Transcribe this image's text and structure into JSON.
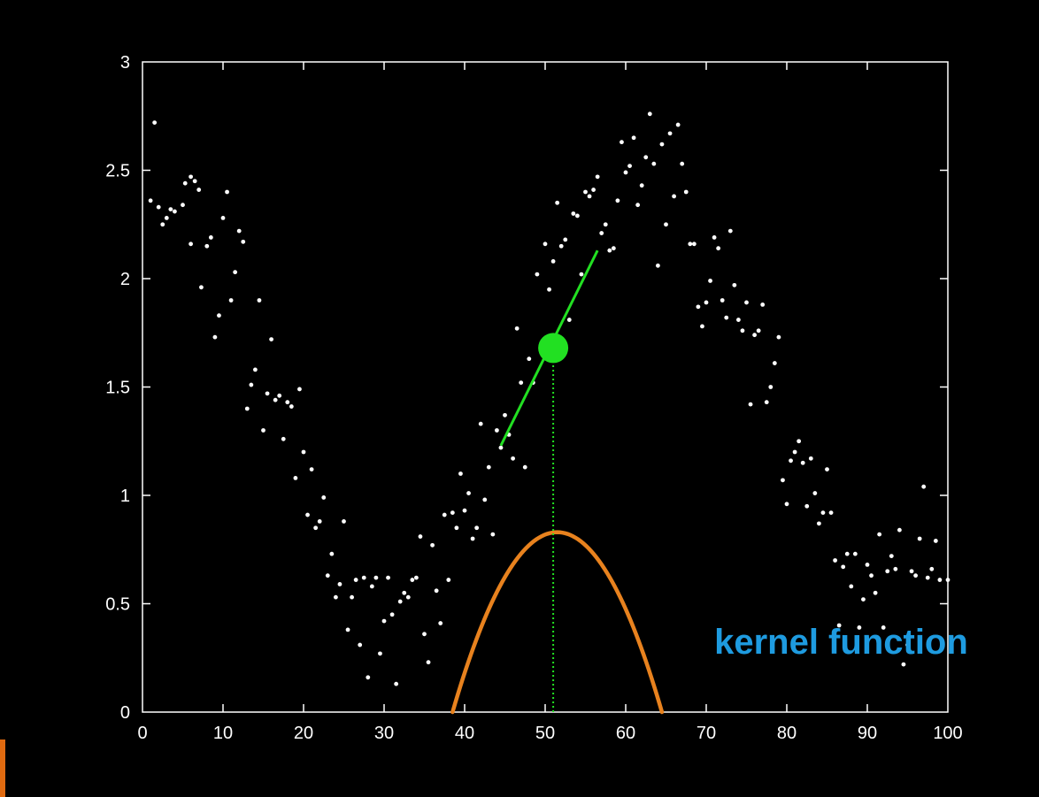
{
  "chart_data": {
    "type": "scatter",
    "title": "",
    "xlabel": "",
    "ylabel": "",
    "xlim": [
      0,
      100
    ],
    "ylim": [
      0,
      3
    ],
    "x_ticks": [
      0,
      10,
      20,
      30,
      40,
      50,
      60,
      70,
      80,
      90,
      100
    ],
    "x_tick_labels": [
      "0",
      "10",
      "20",
      "30",
      "40",
      "50",
      "60",
      "70",
      "80",
      "90",
      "100"
    ],
    "y_ticks": [
      0,
      0.5,
      1,
      1.5,
      2,
      2.5,
      3
    ],
    "y_tick_labels": [
      "0",
      "0.5",
      "1",
      "1.5",
      "2",
      "2.5",
      "3"
    ],
    "grid": false,
    "colors": {
      "background": "#000000",
      "axes": "#ffffff",
      "points": "#ffffff",
      "local_fit": "#22e022",
      "query_point": "#22e022",
      "kernel": "#e8821e",
      "annotation": "#1e9be0"
    },
    "series": [
      {
        "type": "scatter",
        "points": [
          [
            1.5,
            2.72
          ],
          [
            1,
            2.36
          ],
          [
            2,
            2.33
          ],
          [
            2.5,
            2.25
          ],
          [
            3,
            2.28
          ],
          [
            3.5,
            2.32
          ],
          [
            4,
            2.31
          ],
          [
            5,
            2.34
          ],
          [
            5.3,
            2.44
          ],
          [
            6,
            2.47
          ],
          [
            6.5,
            2.45
          ],
          [
            7,
            2.41
          ],
          [
            7.3,
            1.96
          ],
          [
            6,
            2.16
          ],
          [
            8,
            2.15
          ],
          [
            8.5,
            2.19
          ],
          [
            9,
            1.73
          ],
          [
            9.5,
            1.83
          ],
          [
            10,
            2.28
          ],
          [
            10.5,
            2.4
          ],
          [
            11,
            1.9
          ],
          [
            11.5,
            2.03
          ],
          [
            12,
            2.22
          ],
          [
            12.5,
            2.17
          ],
          [
            13,
            1.4
          ],
          [
            13.5,
            1.51
          ],
          [
            14,
            1.58
          ],
          [
            14.5,
            1.9
          ],
          [
            15,
            1.3
          ],
          [
            15.5,
            1.47
          ],
          [
            16,
            1.72
          ],
          [
            16.5,
            1.44
          ],
          [
            17,
            1.46
          ],
          [
            17.5,
            1.26
          ],
          [
            18,
            1.43
          ],
          [
            18.5,
            1.41
          ],
          [
            19,
            1.08
          ],
          [
            19.5,
            1.49
          ],
          [
            20,
            1.2
          ],
          [
            20.5,
            0.91
          ],
          [
            21,
            1.12
          ],
          [
            21.5,
            0.85
          ],
          [
            22,
            0.88
          ],
          [
            22.5,
            0.99
          ],
          [
            23,
            0.63
          ],
          [
            23.5,
            0.73
          ],
          [
            24,
            0.53
          ],
          [
            24.5,
            0.59
          ],
          [
            25,
            0.88
          ],
          [
            25.5,
            0.38
          ],
          [
            26,
            0.53
          ],
          [
            26.5,
            0.61
          ],
          [
            27,
            0.31
          ],
          [
            27.5,
            0.62
          ],
          [
            28,
            0.16
          ],
          [
            28.5,
            0.58
          ],
          [
            29,
            0.62
          ],
          [
            29.5,
            0.27
          ],
          [
            30,
            0.42
          ],
          [
            30.5,
            0.62
          ],
          [
            31,
            0.45
          ],
          [
            31.5,
            0.13
          ],
          [
            32,
            0.51
          ],
          [
            32.5,
            0.55
          ],
          [
            33,
            0.53
          ],
          [
            33.5,
            0.61
          ],
          [
            34,
            0.62
          ],
          [
            34.5,
            0.81
          ],
          [
            35,
            0.36
          ],
          [
            35.5,
            0.23
          ],
          [
            36,
            0.77
          ],
          [
            36.5,
            0.56
          ],
          [
            37,
            0.41
          ],
          [
            37.5,
            0.91
          ],
          [
            38,
            0.61
          ],
          [
            38.5,
            0.92
          ],
          [
            39,
            0.85
          ],
          [
            39.5,
            1.1
          ],
          [
            40,
            0.93
          ],
          [
            40.5,
            1.01
          ],
          [
            41,
            0.8
          ],
          [
            41.5,
            0.85
          ],
          [
            42,
            1.33
          ],
          [
            42.5,
            0.98
          ],
          [
            43,
            1.13
          ],
          [
            43.5,
            0.82
          ],
          [
            44,
            1.3
          ],
          [
            44.5,
            1.22
          ],
          [
            45,
            1.37
          ],
          [
            45.5,
            1.28
          ],
          [
            46,
            1.17
          ],
          [
            46.5,
            1.77
          ],
          [
            47,
            1.52
          ],
          [
            47.5,
            1.13
          ],
          [
            48,
            1.63
          ],
          [
            48.5,
            1.52
          ],
          [
            49,
            2.02
          ],
          [
            50,
            2.16
          ],
          [
            50.5,
            1.95
          ],
          [
            51,
            2.08
          ],
          [
            51.5,
            2.35
          ],
          [
            52,
            2.15
          ],
          [
            52.5,
            2.18
          ],
          [
            53,
            1.81
          ],
          [
            53.5,
            2.3
          ],
          [
            54,
            2.29
          ],
          [
            54.5,
            2.02
          ],
          [
            55,
            2.4
          ],
          [
            55.5,
            2.38
          ],
          [
            56,
            2.41
          ],
          [
            56.5,
            2.47
          ],
          [
            57,
            2.21
          ],
          [
            57.5,
            2.25
          ],
          [
            58,
            2.13
          ],
          [
            58.5,
            2.14
          ],
          [
            59,
            2.36
          ],
          [
            59.5,
            2.63
          ],
          [
            60,
            2.49
          ],
          [
            60.5,
            2.52
          ],
          [
            61,
            2.65
          ],
          [
            61.5,
            2.34
          ],
          [
            62,
            2.43
          ],
          [
            62.5,
            2.56
          ],
          [
            63,
            2.76
          ],
          [
            63.5,
            2.53
          ],
          [
            64,
            2.06
          ],
          [
            64.5,
            2.62
          ],
          [
            65,
            2.25
          ],
          [
            65.5,
            2.67
          ],
          [
            66,
            2.38
          ],
          [
            66.5,
            2.71
          ],
          [
            67,
            2.53
          ],
          [
            67.5,
            2.4
          ],
          [
            68,
            2.16
          ],
          [
            68.5,
            2.16
          ],
          [
            69,
            1.87
          ],
          [
            69.5,
            1.78
          ],
          [
            70,
            1.89
          ],
          [
            70.5,
            1.99
          ],
          [
            71,
            2.19
          ],
          [
            71.5,
            2.14
          ],
          [
            72,
            1.9
          ],
          [
            72.5,
            1.82
          ],
          [
            73,
            2.22
          ],
          [
            73.5,
            1.97
          ],
          [
            74,
            1.81
          ],
          [
            74.5,
            1.76
          ],
          [
            75,
            1.89
          ],
          [
            75.5,
            1.42
          ],
          [
            76,
            1.74
          ],
          [
            76.5,
            1.76
          ],
          [
            77,
            1.88
          ],
          [
            77.5,
            1.43
          ],
          [
            78,
            1.5
          ],
          [
            78.5,
            1.61
          ],
          [
            79,
            1.73
          ],
          [
            79.5,
            1.07
          ],
          [
            80,
            0.96
          ],
          [
            80.5,
            1.16
          ],
          [
            81,
            1.2
          ],
          [
            81.5,
            1.25
          ],
          [
            82,
            1.15
          ],
          [
            82.5,
            0.95
          ],
          [
            83,
            1.17
          ],
          [
            83.5,
            1.01
          ],
          [
            84,
            0.87
          ],
          [
            84.5,
            0.92
          ],
          [
            85,
            1.12
          ],
          [
            85.5,
            0.92
          ],
          [
            86,
            0.7
          ],
          [
            86.5,
            0.4
          ],
          [
            87,
            0.67
          ],
          [
            87.5,
            0.73
          ],
          [
            88,
            0.58
          ],
          [
            88.5,
            0.73
          ],
          [
            89,
            0.39
          ],
          [
            89.5,
            0.52
          ],
          [
            90,
            0.68
          ],
          [
            90.5,
            0.63
          ],
          [
            91,
            0.55
          ],
          [
            91.5,
            0.82
          ],
          [
            92,
            0.39
          ],
          [
            92.5,
            0.65
          ],
          [
            93,
            0.72
          ],
          [
            93.5,
            0.66
          ],
          [
            94,
            0.84
          ],
          [
            94.5,
            0.22
          ],
          [
            95,
            0.31
          ],
          [
            95.5,
            0.65
          ],
          [
            96,
            0.63
          ],
          [
            96.5,
            0.8
          ],
          [
            97,
            1.04
          ],
          [
            97.5,
            0.62
          ],
          [
            98,
            0.66
          ],
          [
            98.5,
            0.79
          ],
          [
            99,
            0.61
          ],
          [
            100,
            0.61
          ]
        ]
      },
      {
        "type": "line",
        "x": [
          44.5,
          56.5
        ],
        "y": [
          1.23,
          2.13
        ]
      },
      {
        "type": "point",
        "x": 51,
        "y": 1.68
      },
      {
        "type": "vline",
        "x": 51,
        "y": [
          0,
          1.68
        ]
      },
      {
        "type": "curve",
        "center": 51.5,
        "peak": 0.83,
        "half_width": 13
      }
    ],
    "annotations": [
      {
        "text": "kernel function",
        "x": 71,
        "y": 0.27
      }
    ]
  }
}
